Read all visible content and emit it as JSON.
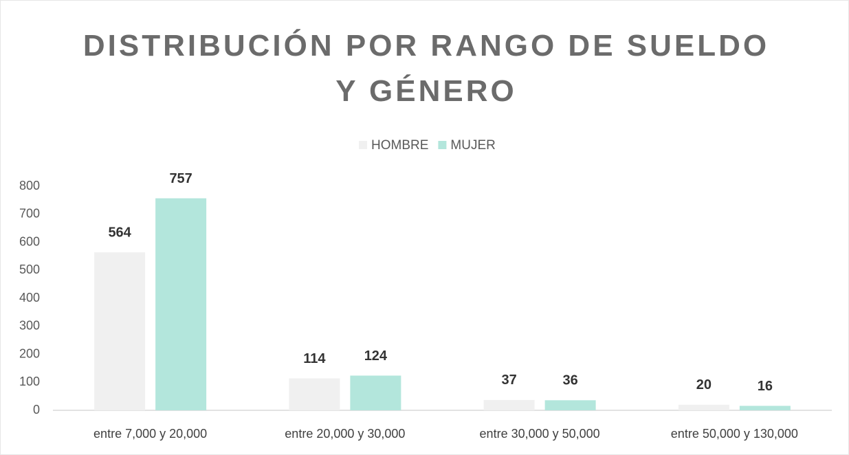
{
  "chart_data": {
    "type": "bar",
    "title": "DISTRIBUCIÓN POR RANGO DE SUELDO Y GÉNERO",
    "categories": [
      "entre 7,000 y 20,000",
      "entre 20,000 y 30,000",
      "entre 30,000 y 50,000",
      "entre 50,000 y 130,000"
    ],
    "series": [
      {
        "name": "HOMBRE",
        "color": "#f0f0f0",
        "values": [
          564,
          114,
          37,
          20
        ]
      },
      {
        "name": "MUJER",
        "color": "#b3e6dc",
        "values": [
          757,
          124,
          36,
          16
        ]
      }
    ],
    "ylim": [
      0,
      800
    ],
    "yticks": [
      0,
      100,
      200,
      300,
      400,
      500,
      600,
      700,
      800
    ],
    "legend": "top",
    "grid": false
  }
}
